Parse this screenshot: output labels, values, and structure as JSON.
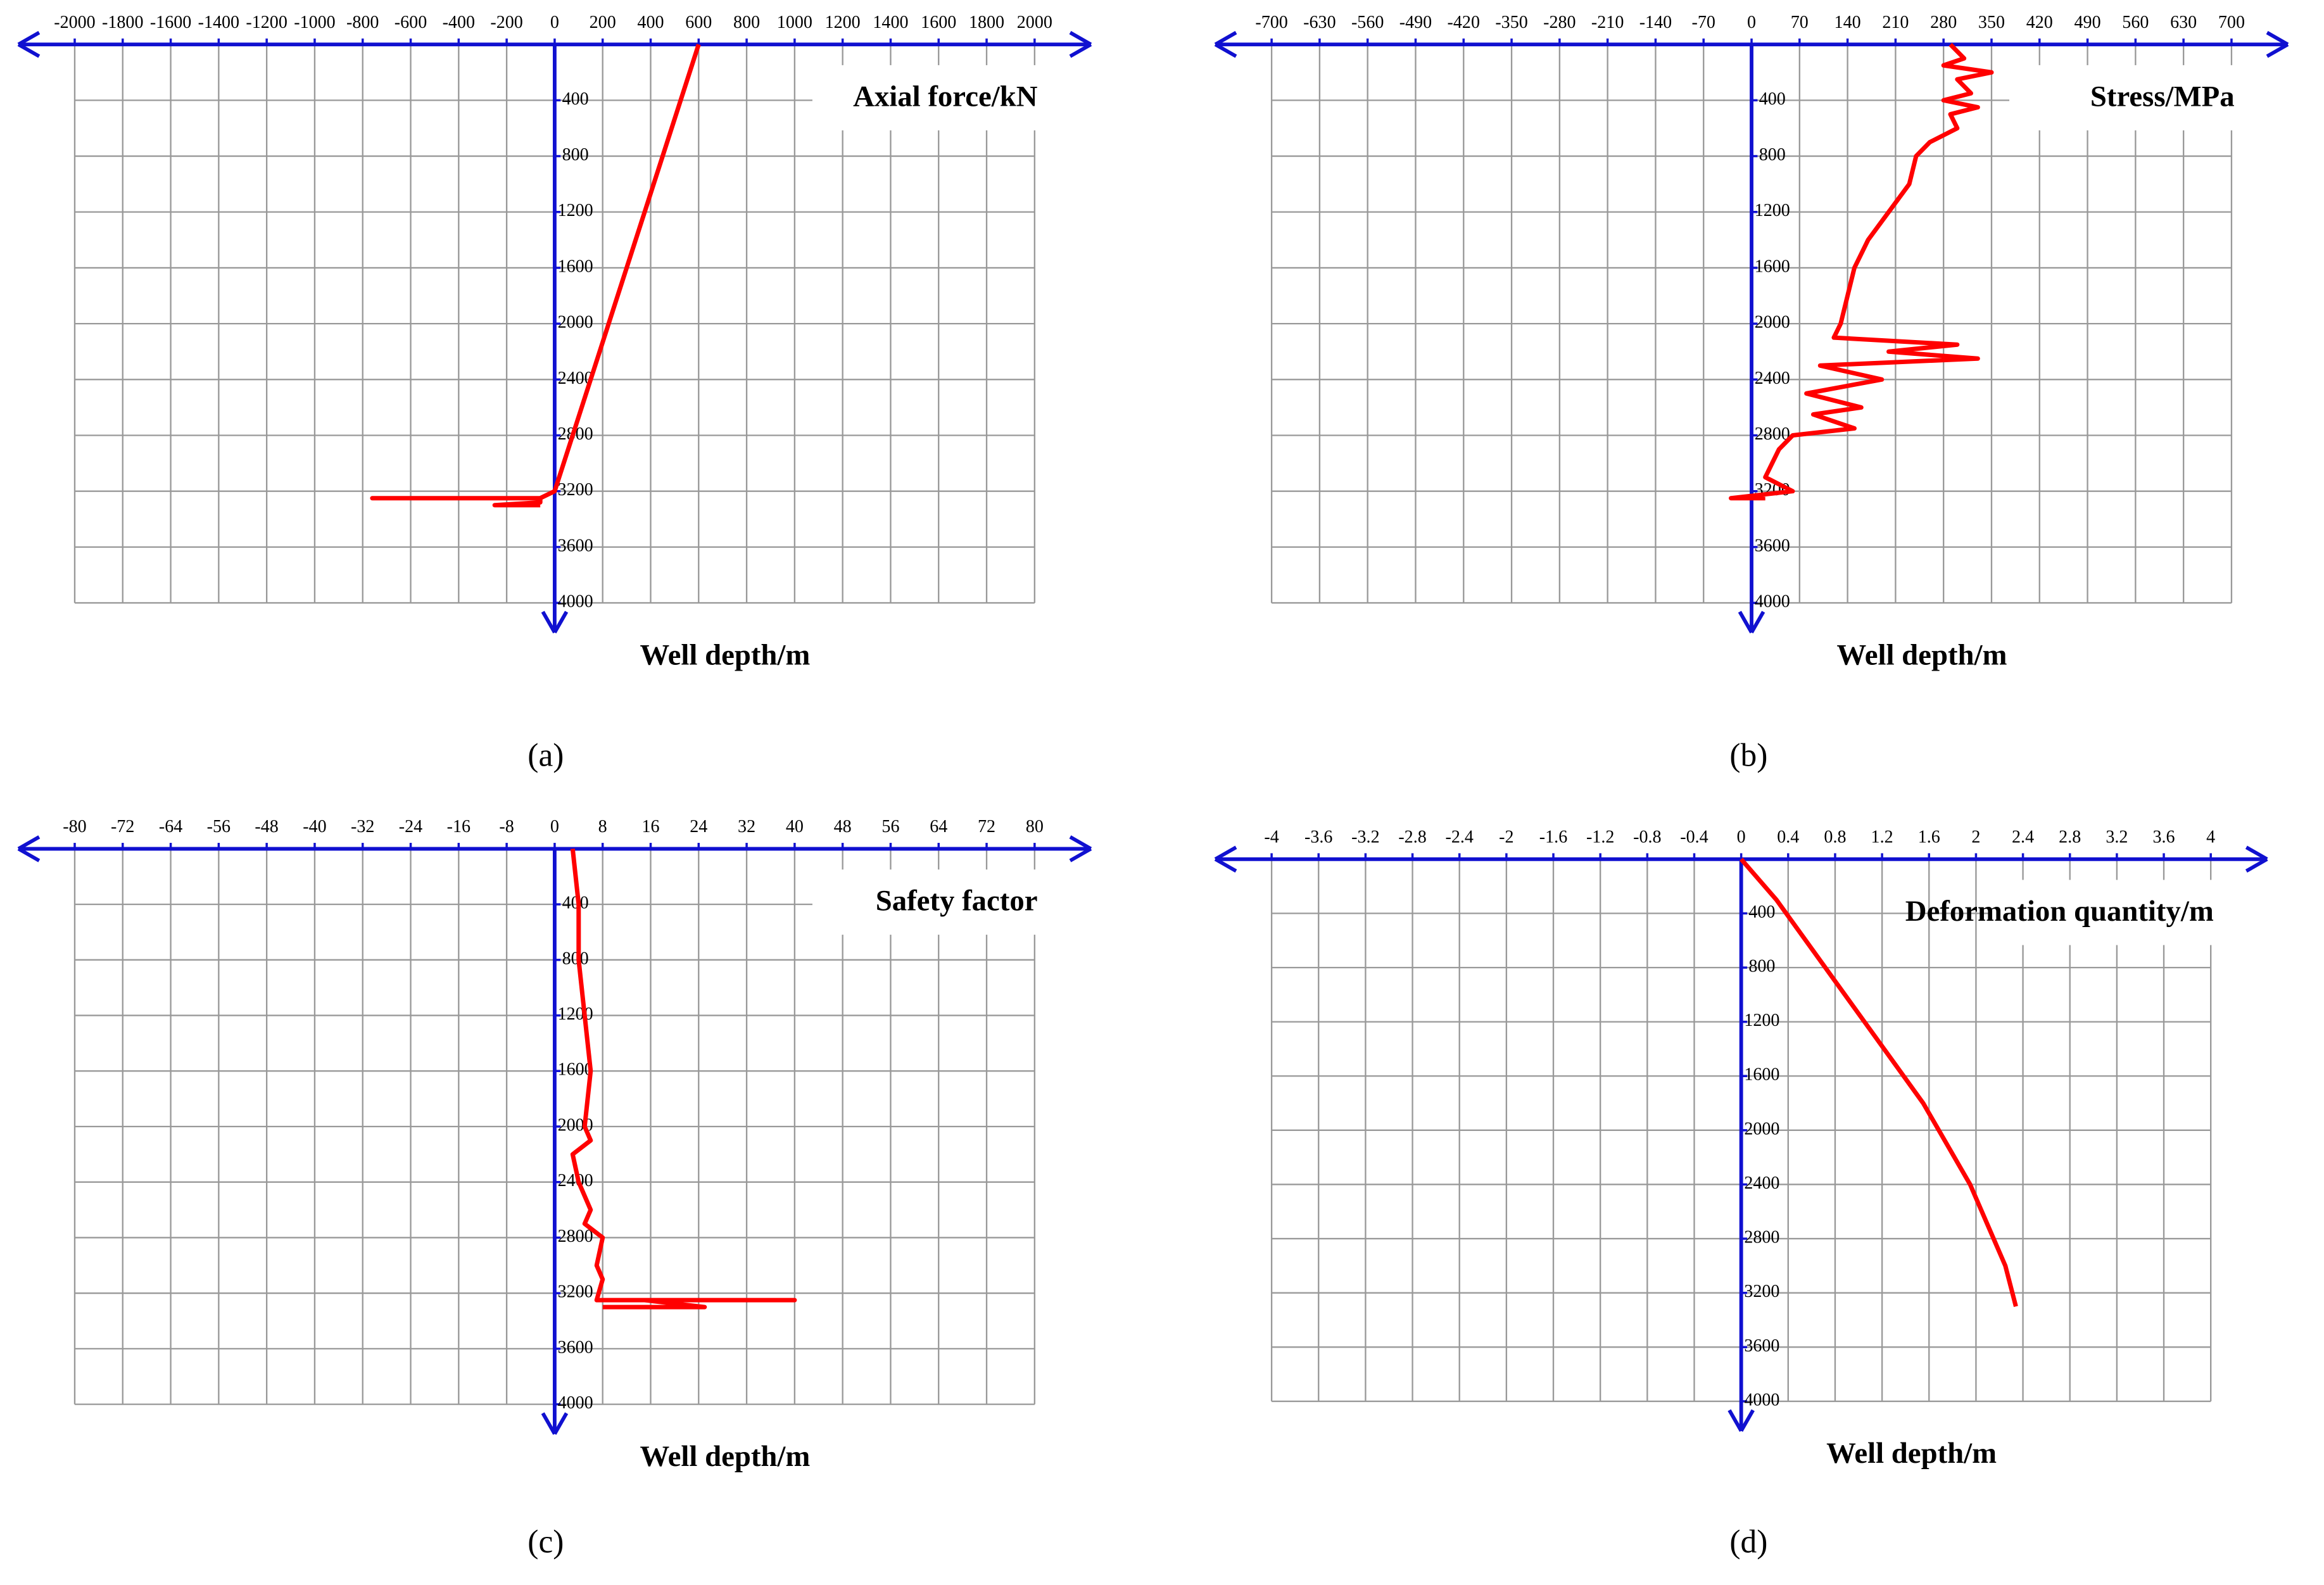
{
  "chart_data": [
    {
      "type": "line",
      "xlabel": "Axial force/kN",
      "ylabel": "Well depth/m",
      "caption": "(a)",
      "color": "#ff0000",
      "grid": true,
      "xlim": [
        -2000,
        2000
      ],
      "xticks": [
        -2000,
        -1800,
        -1600,
        -1400,
        -1200,
        -1000,
        -800,
        -600,
        -400,
        -200,
        0,
        200,
        400,
        600,
        800,
        1000,
        1200,
        1400,
        1600,
        1800,
        2000
      ],
      "ylim": [
        0,
        4000
      ],
      "yticks": [
        400,
        800,
        1200,
        1600,
        2000,
        2400,
        2800,
        3200,
        3600,
        4000
      ],
      "values": [
        600,
        300,
        0,
        -60,
        -760,
        -60,
        -60,
        -250,
        -60
      ],
      "depth": [
        0,
        1600,
        3200,
        3250,
        3250,
        3250,
        3280,
        3300,
        3300
      ]
    },
    {
      "type": "line",
      "xlabel": "Stress/MPa",
      "ylabel": "Well depth/m",
      "caption": "(b)",
      "color": "#ff0000",
      "grid": true,
      "xlim": [
        -700,
        700
      ],
      "xticks": [
        -700,
        -630,
        -560,
        -490,
        -420,
        -350,
        -280,
        -210,
        -140,
        -70,
        0,
        70,
        140,
        210,
        280,
        350,
        420,
        490,
        560,
        630,
        700
      ],
      "ylim": [
        0,
        4000
      ],
      "yticks": [
        400,
        800,
        1200,
        1600,
        2000,
        2400,
        2800,
        3200,
        3600,
        4000
      ],
      "values": [
        290,
        310,
        280,
        350,
        300,
        320,
        280,
        330,
        290,
        300,
        260,
        240,
        230,
        200,
        170,
        150,
        140,
        130,
        120,
        300,
        200,
        330,
        100,
        190,
        80,
        160,
        90,
        150,
        60,
        40,
        30,
        20,
        60,
        -30,
        20
      ],
      "depth": [
        0,
        100,
        150,
        200,
        250,
        350,
        400,
        450,
        500,
        600,
        700,
        800,
        1000,
        1200,
        1400,
        1600,
        1800,
        2000,
        2100,
        2150,
        2200,
        2250,
        2300,
        2400,
        2500,
        2600,
        2650,
        2750,
        2800,
        2900,
        3000,
        3100,
        3200,
        3250,
        3250
      ]
    },
    {
      "type": "line",
      "xlabel": "Safety factor",
      "ylabel": "Well depth/m",
      "caption": "(c)",
      "color": "#ff0000",
      "grid": true,
      "xlim": [
        -80,
        80
      ],
      "xticks": [
        -80,
        -72,
        -64,
        -56,
        -48,
        -40,
        -32,
        -24,
        -16,
        -8,
        0,
        8,
        16,
        24,
        32,
        40,
        48,
        56,
        64,
        72,
        80
      ],
      "ylim": [
        0,
        4000
      ],
      "yticks": [
        400,
        800,
        1200,
        1600,
        2000,
        2400,
        2800,
        3200,
        3600,
        4000
      ],
      "values": [
        3,
        4,
        4,
        5,
        6,
        5,
        6,
        3,
        4,
        6,
        5,
        8,
        7,
        8,
        7,
        40,
        15,
        25,
        8
      ],
      "depth": [
        0,
        400,
        800,
        1200,
        1600,
        2000,
        2100,
        2200,
        2400,
        2600,
        2700,
        2800,
        3000,
        3100,
        3250,
        3250,
        3250,
        3300,
        3300
      ]
    },
    {
      "type": "line",
      "xlabel": "Deformation quantity/m",
      "ylabel": "Well depth/m",
      "caption": "(d)",
      "color": "#ff0000",
      "grid": true,
      "xlim": [
        -4,
        4
      ],
      "xticks": [
        -4,
        -3.6,
        -3.2,
        -2.8,
        -2.4,
        -2,
        -1.6,
        -1.2,
        -0.8,
        -0.4,
        0,
        0.4,
        0.8,
        1.2,
        1.6,
        2,
        2.4,
        2.8,
        3.2,
        3.6,
        4
      ],
      "ylim": [
        0,
        4000
      ],
      "yticks": [
        400,
        800,
        1200,
        1600,
        2000,
        2400,
        2800,
        3200,
        3600,
        4000
      ],
      "values": [
        0,
        0.3,
        0.55,
        0.8,
        1.05,
        1.3,
        1.55,
        1.75,
        1.95,
        2.1,
        2.25,
        2.34
      ],
      "depth": [
        0,
        300,
        600,
        900,
        1200,
        1500,
        1800,
        2100,
        2400,
        2700,
        3000,
        3300
      ]
    }
  ]
}
